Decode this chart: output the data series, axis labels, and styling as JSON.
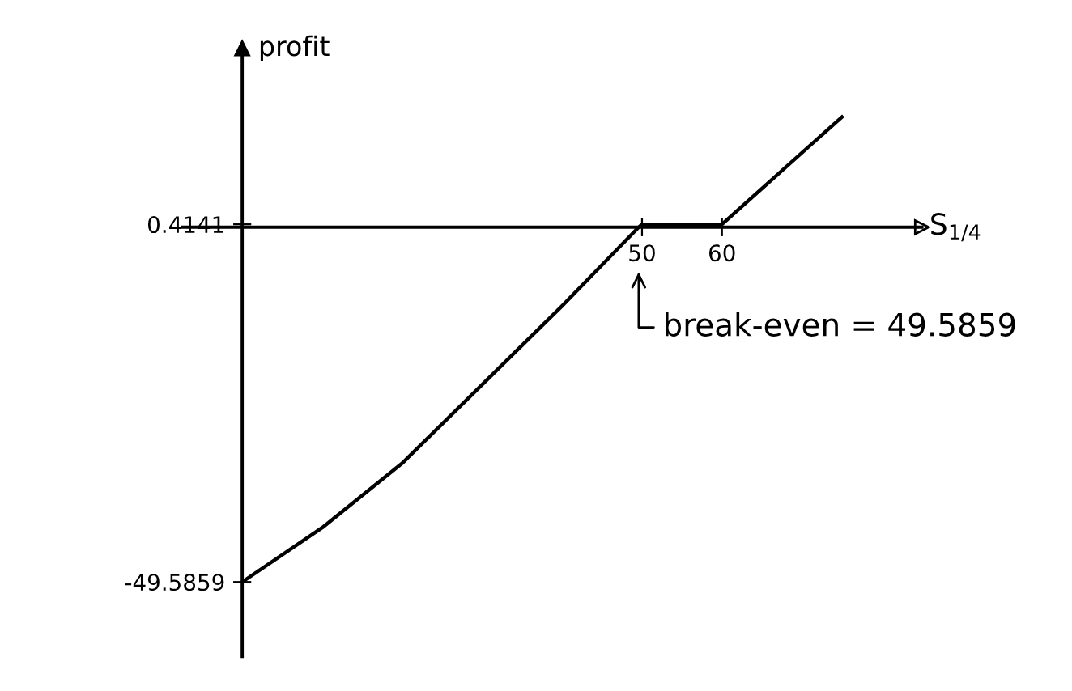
{
  "chart_data": {
    "type": "line",
    "xlabel": "S$_{1/4}$",
    "ylabel": "profit",
    "x": [
      0,
      10,
      20,
      30,
      40,
      49.5859,
      50,
      60,
      75
    ],
    "series": [
      {
        "color": "#000000",
        "values": [
          -49.5859,
          -42,
          -33,
          -22,
          -11,
          0,
          0.4141,
          0.4141,
          15.4141
        ]
      }
    ],
    "xlim": [
      -7.5,
      85
    ],
    "ylim": [
      -60,
      25
    ],
    "xticks": [
      50,
      60
    ],
    "yticks": [
      -49.5859,
      0.4141
    ],
    "annotations": [
      {
        "text": "break-even = 49.5859",
        "x": 49.5859,
        "y": 0
      }
    ],
    "marker": "none",
    "line_style": "solid"
  }
}
